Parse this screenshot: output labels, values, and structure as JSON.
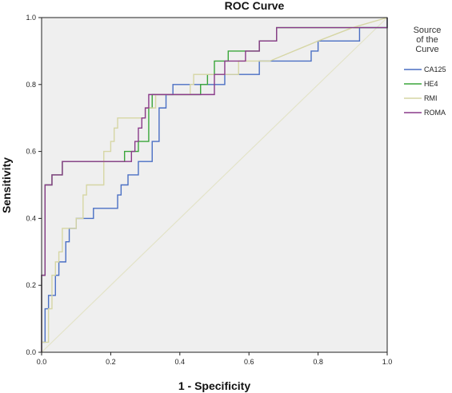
{
  "chart_data": {
    "type": "line",
    "title": "ROC Curve",
    "xlabel": "1 - Specificity",
    "ylabel": "Sensitivity",
    "xlim": [
      0.0,
      1.0
    ],
    "ylim": [
      0.0,
      1.0
    ],
    "xticks": [
      "0.0",
      "0.2",
      "0.4",
      "0.6",
      "0.8",
      "1.0"
    ],
    "yticks": [
      "0.0",
      "0.2",
      "0.4",
      "0.6",
      "0.8",
      "1.0"
    ],
    "grid": false,
    "background": "#efefef",
    "legend": {
      "title": "Source of the Curve",
      "title_lines": [
        "Source",
        "of the",
        "Curve"
      ],
      "placement": "right"
    },
    "reference_line": {
      "from": [
        0,
        0
      ],
      "to": [
        1,
        1
      ],
      "color": "#e3e3c8"
    },
    "series": [
      {
        "name": "CA125",
        "color": "#4a6fc4",
        "points": [
          [
            0,
            0
          ],
          [
            0,
            0.03
          ],
          [
            0.01,
            0.03
          ],
          [
            0.01,
            0.13
          ],
          [
            0.02,
            0.13
          ],
          [
            0.02,
            0.17
          ],
          [
            0.04,
            0.17
          ],
          [
            0.04,
            0.23
          ],
          [
            0.05,
            0.23
          ],
          [
            0.05,
            0.27
          ],
          [
            0.07,
            0.27
          ],
          [
            0.07,
            0.33
          ],
          [
            0.08,
            0.33
          ],
          [
            0.08,
            0.37
          ],
          [
            0.1,
            0.37
          ],
          [
            0.1,
            0.4
          ],
          [
            0.15,
            0.4
          ],
          [
            0.15,
            0.43
          ],
          [
            0.22,
            0.43
          ],
          [
            0.22,
            0.47
          ],
          [
            0.23,
            0.47
          ],
          [
            0.23,
            0.5
          ],
          [
            0.25,
            0.5
          ],
          [
            0.25,
            0.53
          ],
          [
            0.28,
            0.53
          ],
          [
            0.28,
            0.57
          ],
          [
            0.32,
            0.57
          ],
          [
            0.32,
            0.63
          ],
          [
            0.34,
            0.63
          ],
          [
            0.34,
            0.73
          ],
          [
            0.36,
            0.73
          ],
          [
            0.36,
            0.77
          ],
          [
            0.38,
            0.77
          ],
          [
            0.38,
            0.8
          ],
          [
            0.53,
            0.8
          ],
          [
            0.53,
            0.83
          ],
          [
            0.63,
            0.83
          ],
          [
            0.63,
            0.87
          ],
          [
            0.78,
            0.87
          ],
          [
            0.78,
            0.9
          ],
          [
            0.8,
            0.9
          ],
          [
            0.8,
            0.93
          ],
          [
            0.92,
            0.93
          ],
          [
            0.92,
            0.97
          ],
          [
            1,
            0.97
          ],
          [
            1,
            1
          ]
        ]
      },
      {
        "name": "HE4",
        "color": "#3aa63a",
        "points": [
          [
            0,
            0
          ],
          [
            0,
            0.23
          ],
          [
            0.01,
            0.23
          ],
          [
            0.01,
            0.5
          ],
          [
            0.03,
            0.5
          ],
          [
            0.03,
            0.53
          ],
          [
            0.06,
            0.53
          ],
          [
            0.06,
            0.57
          ],
          [
            0.24,
            0.57
          ],
          [
            0.24,
            0.6
          ],
          [
            0.28,
            0.6
          ],
          [
            0.28,
            0.63
          ],
          [
            0.31,
            0.63
          ],
          [
            0.31,
            0.73
          ],
          [
            0.32,
            0.73
          ],
          [
            0.32,
            0.77
          ],
          [
            0.46,
            0.77
          ],
          [
            0.46,
            0.8
          ],
          [
            0.48,
            0.8
          ],
          [
            0.48,
            0.83
          ],
          [
            0.5,
            0.83
          ],
          [
            0.5,
            0.87
          ],
          [
            0.54,
            0.87
          ],
          [
            0.54,
            0.9
          ],
          [
            0.63,
            0.9
          ],
          [
            0.63,
            0.93
          ],
          [
            0.68,
            0.93
          ],
          [
            0.68,
            0.97
          ],
          [
            1,
            0.97
          ],
          [
            1,
            1
          ]
        ]
      },
      {
        "name": "RMI",
        "color": "#d6d6a4",
        "points": [
          [
            0,
            0
          ],
          [
            0,
            0.03
          ],
          [
            0.02,
            0.03
          ],
          [
            0.02,
            0.13
          ],
          [
            0.03,
            0.13
          ],
          [
            0.03,
            0.23
          ],
          [
            0.04,
            0.23
          ],
          [
            0.04,
            0.27
          ],
          [
            0.05,
            0.27
          ],
          [
            0.05,
            0.3
          ],
          [
            0.06,
            0.3
          ],
          [
            0.06,
            0.37
          ],
          [
            0.1,
            0.37
          ],
          [
            0.1,
            0.4
          ],
          [
            0.12,
            0.4
          ],
          [
            0.12,
            0.47
          ],
          [
            0.13,
            0.47
          ],
          [
            0.13,
            0.5
          ],
          [
            0.18,
            0.5
          ],
          [
            0.18,
            0.6
          ],
          [
            0.2,
            0.6
          ],
          [
            0.2,
            0.63
          ],
          [
            0.21,
            0.63
          ],
          [
            0.21,
            0.67
          ],
          [
            0.22,
            0.67
          ],
          [
            0.22,
            0.7
          ],
          [
            0.3,
            0.7
          ],
          [
            0.3,
            0.73
          ],
          [
            0.33,
            0.73
          ],
          [
            0.33,
            0.77
          ],
          [
            0.43,
            0.77
          ],
          [
            0.43,
            0.8
          ],
          [
            0.44,
            0.8
          ],
          [
            0.44,
            0.83
          ],
          [
            0.57,
            0.83
          ],
          [
            0.57,
            0.87
          ],
          [
            0.66,
            0.87
          ],
          [
            0.73,
            0.9
          ],
          [
            0.8,
            0.93
          ],
          [
            0.9,
            0.97
          ],
          [
            1,
            1
          ]
        ]
      },
      {
        "name": "ROMA",
        "color": "#8a3a8a",
        "points": [
          [
            0,
            0
          ],
          [
            0,
            0.23
          ],
          [
            0.01,
            0.23
          ],
          [
            0.01,
            0.5
          ],
          [
            0.03,
            0.5
          ],
          [
            0.03,
            0.53
          ],
          [
            0.06,
            0.53
          ],
          [
            0.06,
            0.57
          ],
          [
            0.26,
            0.57
          ],
          [
            0.26,
            0.6
          ],
          [
            0.27,
            0.6
          ],
          [
            0.27,
            0.63
          ],
          [
            0.28,
            0.63
          ],
          [
            0.28,
            0.67
          ],
          [
            0.29,
            0.67
          ],
          [
            0.29,
            0.7
          ],
          [
            0.3,
            0.7
          ],
          [
            0.3,
            0.73
          ],
          [
            0.31,
            0.73
          ],
          [
            0.31,
            0.77
          ],
          [
            0.5,
            0.77
          ],
          [
            0.5,
            0.83
          ],
          [
            0.53,
            0.83
          ],
          [
            0.53,
            0.87
          ],
          [
            0.59,
            0.87
          ],
          [
            0.59,
            0.9
          ],
          [
            0.63,
            0.9
          ],
          [
            0.63,
            0.93
          ],
          [
            0.68,
            0.93
          ],
          [
            0.68,
            0.97
          ],
          [
            1,
            0.97
          ],
          [
            1,
            1
          ]
        ]
      }
    ]
  }
}
